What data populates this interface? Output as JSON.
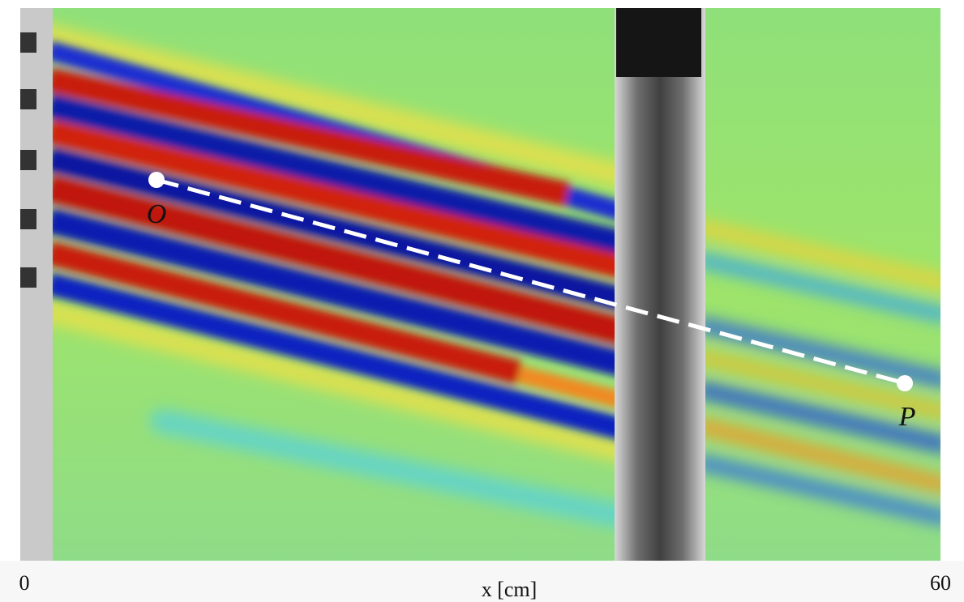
{
  "figure": {
    "points": [
      {
        "label": "O"
      },
      {
        "label": "P"
      }
    ],
    "axis": {
      "label": "x [cm]",
      "ticks": [
        0,
        60
      ]
    }
  }
}
